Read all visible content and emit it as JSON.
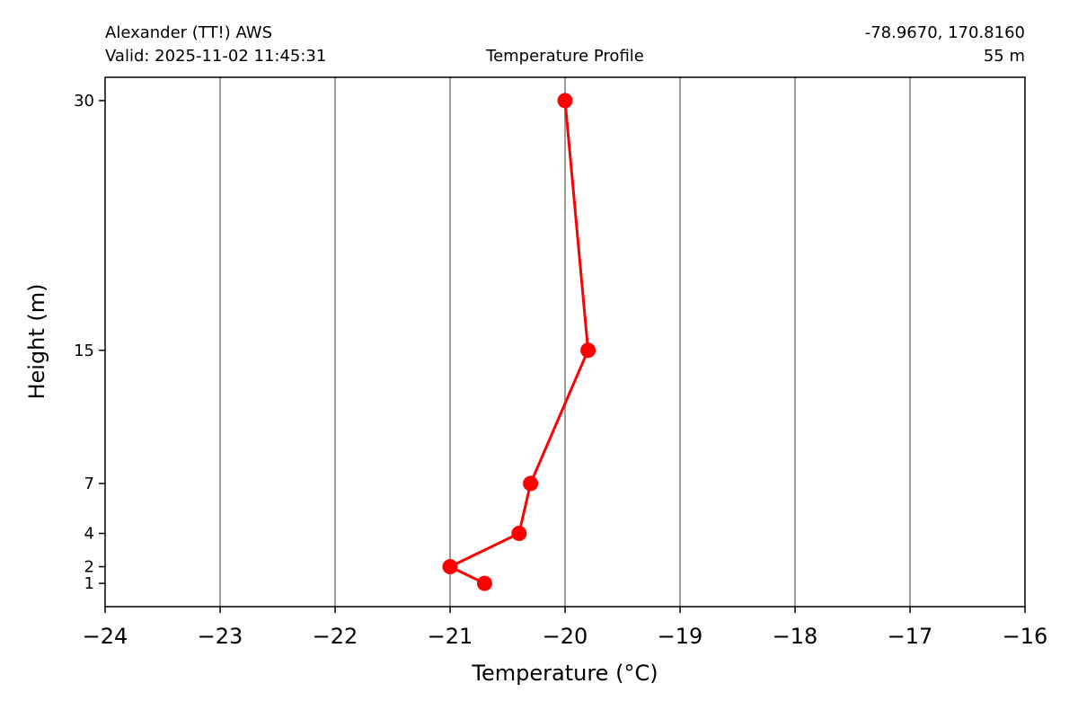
{
  "header": {
    "station": "Alexander (TT!) AWS",
    "valid": "Valid: 2025-11-02 11:45:31",
    "title": "Temperature Profile",
    "coords": "-78.9670, 170.8160",
    "elevation": "55 m"
  },
  "chart_data": {
    "type": "line",
    "title": "Temperature Profile",
    "xlabel": "Temperature (°C)",
    "ylabel": "Height (m)",
    "xlim": [
      -24,
      -16
    ],
    "ylim": [
      -0.4,
      31.4
    ],
    "x_ticks": [
      -24,
      -23,
      -22,
      -21,
      -20,
      -19,
      -18,
      -17,
      -16
    ],
    "x_tick_labels": [
      "−24",
      "−23",
      "−22",
      "−21",
      "−20",
      "−19",
      "−18",
      "−17",
      "−16"
    ],
    "y_ticks": [
      1,
      2,
      4,
      7,
      15,
      30
    ],
    "y_tick_labels": [
      "1",
      "2",
      "4",
      "7",
      "15",
      "30"
    ],
    "grid": "vertical lines at x ticks",
    "series": [
      {
        "color": "#ff0000",
        "marker": "circle",
        "points": [
          {
            "x": -20.7,
            "y": 1
          },
          {
            "x": -21.0,
            "y": 2
          },
          {
            "x": -20.4,
            "y": 4
          },
          {
            "x": -20.3,
            "y": 7
          },
          {
            "x": -19.8,
            "y": 15
          },
          {
            "x": -20.0,
            "y": 30
          }
        ]
      }
    ]
  }
}
